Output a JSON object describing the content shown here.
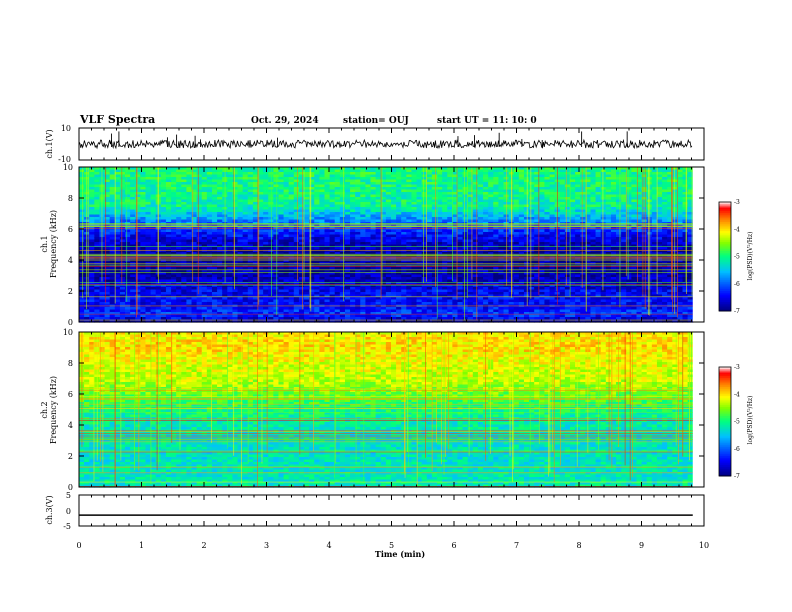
{
  "header": {
    "title": "VLF Spectra",
    "date": "Oct. 29, 2024",
    "station": "station= OUJ",
    "start_ut": "start UT =  11: 10: 0"
  },
  "panels": {
    "ch1_wave": {
      "ylabel": "ch.1(V)",
      "ticks": [
        "10",
        "-10"
      ]
    },
    "ch1_spec": {
      "ylabel_top": "ch.1",
      "ylabel_bottom": "Frequency (kHz)",
      "ticks": [
        "10",
        "8",
        "6",
        "4",
        "2",
        "0"
      ]
    },
    "ch2_spec": {
      "ylabel_top": "ch.2",
      "ylabel_bottom": "Frequency (kHz)",
      "ticks": [
        "10",
        "8",
        "6",
        "4",
        "2",
        "0"
      ]
    },
    "ch3_wave": {
      "ylabel": "ch.3(V)",
      "ticks": [
        "5",
        "0",
        "-5"
      ]
    }
  },
  "xaxis": {
    "label": "Time (min)",
    "ticks": [
      "0",
      "1",
      "2",
      "3",
      "4",
      "5",
      "6",
      "7",
      "8",
      "9",
      "10"
    ]
  },
  "colorbar": {
    "label": "log(PSD)(V²/Hz)",
    "ticks": [
      "-3",
      "-4",
      "-5",
      "-6",
      "-7"
    ]
  },
  "colors": {
    "colormap": [
      "#00007f",
      "#0000ff",
      "#00c0ff",
      "#00ff80",
      "#80ff00",
      "#ffff00",
      "#ff8000",
      "#ff0000",
      "#ffffff"
    ]
  },
  "chart_data": [
    {
      "type": "line",
      "name": "ch.1(V)",
      "xlim": [
        0,
        10
      ],
      "ylim": [
        -10,
        10
      ],
      "x": [
        0,
        1,
        2,
        3,
        4,
        5,
        6,
        7,
        8,
        9,
        9.82
      ],
      "values": [
        0,
        0,
        0,
        0,
        0,
        0,
        0,
        0,
        0,
        0,
        0
      ]
    },
    {
      "type": "heatmap",
      "name": "ch.1",
      "xlim": [
        0,
        10
      ],
      "ylim": [
        0,
        10
      ],
      "clim": [
        -7,
        -3
      ],
      "freq_profile": [
        {
          "f": 0.0,
          "v": -6.8
        },
        {
          "f": 0.5,
          "v": -6.2
        },
        {
          "f": 1.0,
          "v": -6.4
        },
        {
          "f": 2.0,
          "v": -6.5
        },
        {
          "f": 3.0,
          "v": -6.8
        },
        {
          "f": 4.0,
          "v": -6.9
        },
        {
          "f": 5.0,
          "v": -6.7
        },
        {
          "f": 6.0,
          "v": -6.2
        },
        {
          "f": 6.8,
          "v": -5.6
        },
        {
          "f": 7.5,
          "v": -5.1
        },
        {
          "f": 9.0,
          "v": -5.0
        },
        {
          "f": 10.0,
          "v": -5.0
        }
      ]
    },
    {
      "type": "heatmap",
      "name": "ch.2",
      "xlim": [
        0,
        10
      ],
      "ylim": [
        0,
        10
      ],
      "clim": [
        -7,
        -3
      ],
      "freq_profile": [
        {
          "f": 0.0,
          "v": -5.2
        },
        {
          "f": 2.0,
          "v": -5.3
        },
        {
          "f": 4.0,
          "v": -5.2
        },
        {
          "f": 5.0,
          "v": -5.0
        },
        {
          "f": 6.0,
          "v": -4.6
        },
        {
          "f": 7.0,
          "v": -4.3
        },
        {
          "f": 8.0,
          "v": -4.2
        },
        {
          "f": 9.0,
          "v": -4.0
        },
        {
          "f": 10.0,
          "v": -4.1
        }
      ]
    },
    {
      "type": "line",
      "name": "ch.3(V)",
      "xlim": [
        0,
        10
      ],
      "ylim": [
        -5,
        5
      ],
      "x": [
        0,
        9.82
      ],
      "values": [
        -1.5,
        -1.5
      ]
    }
  ]
}
